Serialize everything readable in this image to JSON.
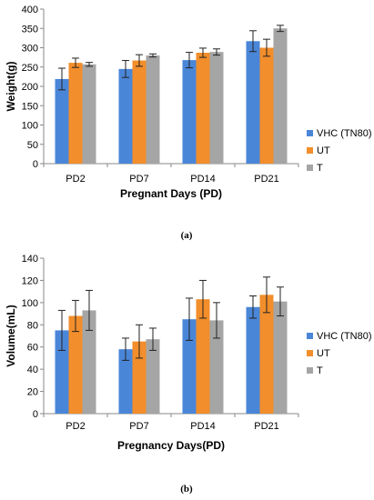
{
  "chart_data": [
    {
      "type": "bar",
      "panel_label": "(a)",
      "title": "",
      "xlabel": "Pregnant Days (PD)",
      "ylabel": "Weight(g)",
      "ylim": [
        0,
        400
      ],
      "yticks": [
        0,
        50,
        100,
        150,
        200,
        250,
        300,
        350,
        400
      ],
      "grid": false,
      "legend_position": "right",
      "categories": [
        "PD2",
        "PD7",
        "PD14",
        "PD21"
      ],
      "series": [
        {
          "name": "VHC (TN80)",
          "color": "#4a86d8",
          "values": [
            219,
            245,
            268,
            317
          ],
          "errors": [
            28,
            22,
            20,
            27
          ]
        },
        {
          "name": "UT",
          "color": "#f28e2b",
          "values": [
            261,
            267,
            287,
            300
          ],
          "errors": [
            12,
            15,
            12,
            22
          ]
        },
        {
          "name": "T",
          "color": "#a5a5a5",
          "values": [
            257,
            280,
            289,
            350
          ],
          "errors": [
            5,
            4,
            8,
            8
          ]
        }
      ]
    },
    {
      "type": "bar",
      "panel_label": "(b)",
      "title": "",
      "xlabel": "Pregnancy Days(PD)",
      "ylabel": "Volume(mL)",
      "ylim": [
        0,
        140
      ],
      "yticks": [
        0,
        20,
        40,
        60,
        80,
        100,
        120,
        140
      ],
      "grid": false,
      "legend_position": "right",
      "categories": [
        "PD2",
        "PD7",
        "PD14",
        "PD21"
      ],
      "series": [
        {
          "name": "VHC (TN80)",
          "color": "#4a86d8",
          "values": [
            75,
            58,
            85,
            96
          ],
          "errors": [
            18,
            10,
            19,
            10
          ]
        },
        {
          "name": "UT",
          "color": "#f28e2b",
          "values": [
            88,
            65,
            103,
            107
          ],
          "errors": [
            14,
            15,
            17,
            16
          ]
        },
        {
          "name": "T",
          "color": "#a5a5a5",
          "values": [
            93,
            67,
            84,
            101
          ],
          "errors": [
            18,
            10,
            16,
            13
          ]
        }
      ]
    }
  ]
}
